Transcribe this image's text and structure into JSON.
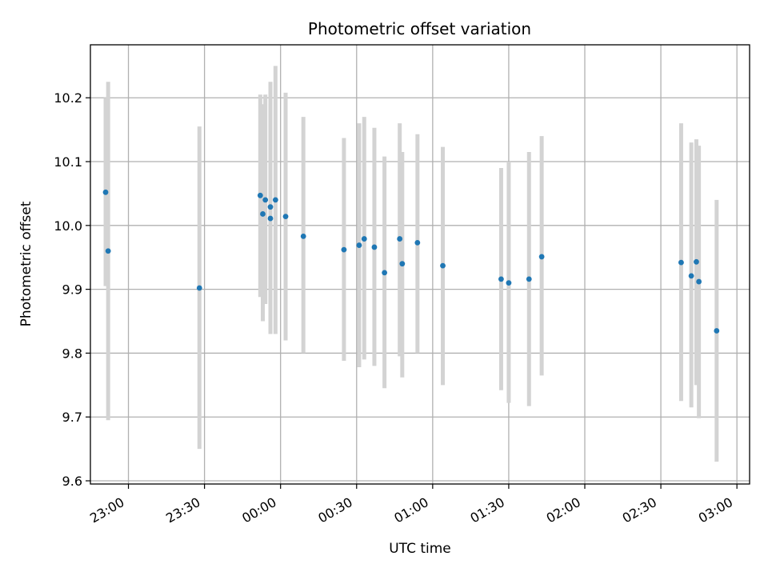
{
  "chart_data": {
    "type": "scatter",
    "title": "Photometric offset variation",
    "xlabel": "UTC time",
    "ylabel": "Photometric offset",
    "xlim": [
      "22:45",
      "03:05"
    ],
    "ylim": [
      9.595,
      10.283
    ],
    "grid": true,
    "xticks": [
      "23:00",
      "23:30",
      "00:00",
      "00:30",
      "01:00",
      "01:30",
      "02:00",
      "02:30",
      "03:00"
    ],
    "yticks": [
      "9.6",
      "9.7",
      "9.8",
      "9.9",
      "10.0",
      "10.1",
      "10.2"
    ],
    "series": [
      {
        "x": [
          "22:51",
          "22:52",
          "23:28",
          "23:52",
          "23:53",
          "23:54",
          "23:56",
          "23:56",
          "23:58",
          "00:02",
          "00:09",
          "00:25",
          "00:31",
          "00:33",
          "00:37",
          "00:41",
          "00:47",
          "00:48",
          "00:54",
          "01:04",
          "01:27",
          "01:30",
          "01:38",
          "01:43",
          "02:38",
          "02:42",
          "02:44",
          "02:45",
          "02:52"
        ],
        "y": [
          10.052,
          9.96,
          9.902,
          10.047,
          10.018,
          10.04,
          10.029,
          10.011,
          10.04,
          10.014,
          9.983,
          9.962,
          9.969,
          9.979,
          9.966,
          9.926,
          9.979,
          9.94,
          9.973,
          9.937,
          9.916,
          9.91,
          9.916,
          9.951,
          9.942,
          9.921,
          9.943,
          9.912,
          9.835
        ],
        "err_low": [
          9.905,
          9.695,
          9.65,
          9.888,
          9.85,
          9.877,
          9.835,
          9.83,
          9.83,
          9.82,
          9.8,
          9.788,
          9.778,
          9.79,
          9.78,
          9.745,
          9.795,
          9.762,
          9.8,
          9.75,
          9.742,
          9.722,
          9.717,
          9.765,
          9.725,
          9.715,
          9.75,
          9.698,
          9.63
        ],
        "err_high": [
          10.2,
          10.225,
          10.155,
          10.205,
          10.19,
          10.205,
          10.225,
          10.19,
          10.25,
          10.208,
          10.17,
          10.137,
          10.16,
          10.17,
          10.153,
          10.108,
          10.16,
          10.115,
          10.143,
          10.123,
          10.09,
          10.1,
          10.115,
          10.14,
          10.16,
          10.13,
          10.135,
          10.125,
          10.04
        ]
      }
    ],
    "colors": {
      "point": "#1f77b4",
      "errorbar": "#d3d3d3",
      "grid": "#b0b0b0"
    }
  }
}
